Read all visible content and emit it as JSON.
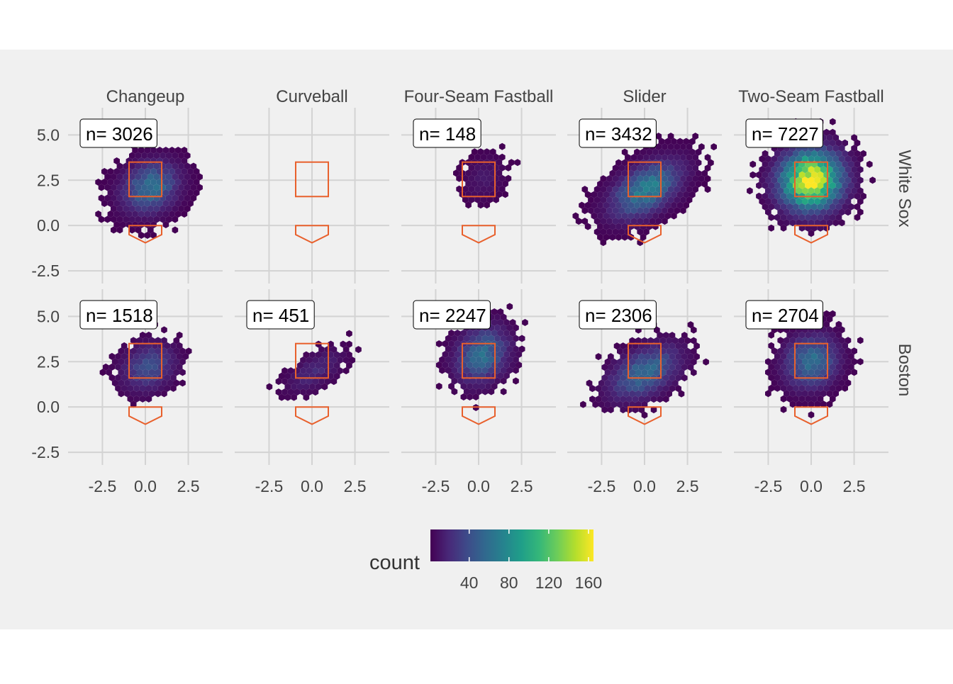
{
  "chart_data": {
    "type": "heatmap",
    "subtype": "hexbin-facet-grid",
    "columns": [
      "Changeup",
      "Curveball",
      "Four-Seam Fastball",
      "Slider",
      "Two-Seam Fastball"
    ],
    "rows": [
      "White Sox",
      "Boston"
    ],
    "xlim": [
      -4.5,
      4.5
    ],
    "ylim": [
      -3.2,
      6.5
    ],
    "x_ticks": [
      "-2.5",
      "0.0",
      "2.5"
    ],
    "x_tick_values": [
      -2.5,
      0,
      2.5
    ],
    "y_ticks": [
      "-2.5",
      "0.0",
      "2.5",
      "5.0"
    ],
    "y_tick_values": [
      -2.5,
      0,
      2.5,
      5.0
    ],
    "strike_zone": {
      "x": [
        -0.95,
        0.95
      ],
      "y": [
        1.6,
        3.5
      ]
    },
    "home_plate": [
      [
        -0.95,
        0
      ],
      [
        0.95,
        0
      ],
      [
        0.95,
        -0.5
      ],
      [
        0,
        -0.95
      ],
      [
        -0.95,
        -0.5
      ]
    ],
    "panels": [
      {
        "row": "White Sox",
        "col": "Changeup",
        "label": "n= 3026",
        "n": 3026,
        "cx": 0.3,
        "cy": 2.1,
        "sx": 1.05,
        "sy": 0.9,
        "rho": 0.2,
        "peak": 62
      },
      {
        "row": "White Sox",
        "col": "Curveball",
        "label": "",
        "n": 0,
        "cx": 0,
        "cy": 0,
        "sx": 1,
        "sy": 1,
        "rho": 0,
        "peak": 0
      },
      {
        "row": "White Sox",
        "col": "Four-Seam Fastball",
        "label": "n= 148",
        "n": 148,
        "cx": 0.3,
        "cy": 2.6,
        "sx": 0.8,
        "sy": 0.8,
        "rho": 0.2,
        "peak": 12
      },
      {
        "row": "White Sox",
        "col": "Slider",
        "label": "n= 3432",
        "n": 3432,
        "cx": 0.1,
        "cy": 2.0,
        "sx": 1.3,
        "sy": 1.0,
        "rho": 0.5,
        "peak": 72
      },
      {
        "row": "White Sox",
        "col": "Two-Seam Fastball",
        "label": "n= 7227",
        "n": 7227,
        "cx": 0.0,
        "cy": 2.5,
        "sx": 1.15,
        "sy": 1.05,
        "rho": 0.05,
        "peak": 165
      },
      {
        "row": "Boston",
        "col": "Changeup",
        "label": "n= 1518",
        "n": 1518,
        "cx": 0.2,
        "cy": 2.2,
        "sx": 1.0,
        "sy": 0.85,
        "rho": 0.2,
        "peak": 40
      },
      {
        "row": "Boston",
        "col": "Curveball",
        "label": "n= 451",
        "n": 451,
        "cx": 0.2,
        "cy": 2.0,
        "sx": 1.1,
        "sy": 0.8,
        "rho": 0.6,
        "peak": 20
      },
      {
        "row": "Boston",
        "col": "Four-Seam Fastball",
        "label": "n= 2247",
        "n": 2247,
        "cx": 0.2,
        "cy": 2.9,
        "sx": 1.0,
        "sy": 1.0,
        "rho": 0.2,
        "peak": 58
      },
      {
        "row": "Boston",
        "col": "Slider",
        "label": "n= 2306",
        "n": 2306,
        "cx": 0.0,
        "cy": 1.9,
        "sx": 1.3,
        "sy": 0.95,
        "rho": 0.45,
        "peak": 58
      },
      {
        "row": "Boston",
        "col": "Two-Seam Fastball",
        "label": "n= 2704",
        "n": 2704,
        "cx": 0.0,
        "cy": 2.5,
        "sx": 1.0,
        "sy": 0.95,
        "rho": 0.1,
        "peak": 60
      }
    ],
    "legend": {
      "title": "count",
      "placement": "bottom",
      "range": [
        1,
        165
      ],
      "ticks": [
        "40",
        "80",
        "120",
        "160"
      ],
      "tick_values": [
        40,
        80,
        120,
        160
      ],
      "palette": [
        "#440154",
        "#482878",
        "#3e4a89",
        "#31688e",
        "#26828e",
        "#1f9e89",
        "#35b779",
        "#6dcd59",
        "#b4de2c",
        "#fde725"
      ]
    },
    "colors": {
      "panel_background": "#f0f0f0",
      "grid": "#d3d3d3",
      "strike_zone": "#e8602c"
    },
    "grid": true
  }
}
